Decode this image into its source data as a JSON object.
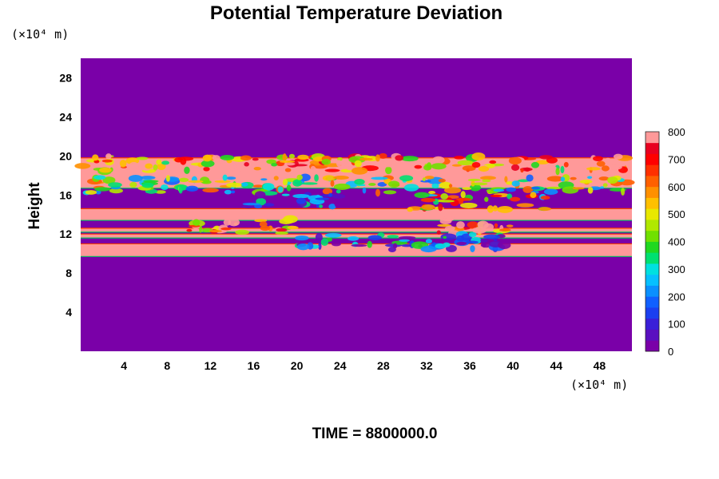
{
  "chart_data": {
    "type": "heatmap",
    "title": "Potential Temperature Deviation",
    "ylabel": "Height",
    "x_unit": "(×10⁴ m)",
    "y_unit": "(×10⁴ m)",
    "footer": "TIME = 8800000.0",
    "xlim": [
      0,
      51
    ],
    "ylim": [
      0,
      30
    ],
    "x_ticks": [
      4,
      8,
      12,
      16,
      20,
      24,
      28,
      32,
      36,
      40,
      44,
      48
    ],
    "y_ticks": [
      4,
      8,
      12,
      16,
      20,
      24,
      28
    ],
    "colorbar": {
      "min": 0,
      "max": 800,
      "ticks": [
        0,
        100,
        200,
        300,
        400,
        500,
        600,
        700,
        800
      ],
      "colors": [
        "#7a00a8",
        "#5a0fc0",
        "#3a1fd8",
        "#1b3ff0",
        "#1060ff",
        "#0a90ff",
        "#06c0ff",
        "#00e0e0",
        "#00e070",
        "#20d820",
        "#70e000",
        "#b0e800",
        "#e8e800",
        "#ffc000",
        "#ff9000",
        "#ff6000",
        "#ff3000",
        "#ff0000",
        "#e80020",
        "#ff9999"
      ]
    },
    "background_value": 0,
    "bands": [
      {
        "y_bottom": 9.7,
        "y_top": 11.0,
        "value": 800
      },
      {
        "y_bottom": 11.6,
        "y_top": 12.0,
        "value": 800
      },
      {
        "y_bottom": 12.2,
        "y_top": 12.6,
        "value": 800
      },
      {
        "y_bottom": 13.4,
        "y_top": 14.6,
        "value": 800
      },
      {
        "y_bottom": 16.7,
        "y_top": 19.8,
        "value": 800
      }
    ],
    "disturbances": [
      {
        "x_from": 0,
        "x_to": 51,
        "y": 19.2,
        "value": 600
      },
      {
        "x_from": 0,
        "x_to": 51,
        "y": 17.0,
        "value": 400
      },
      {
        "x_from": 14,
        "x_to": 24,
        "y": 15.6,
        "value": 150
      },
      {
        "x_from": 30,
        "x_to": 43,
        "y": 15.3,
        "value": 500
      },
      {
        "x_from": 10,
        "x_to": 20,
        "y": 12.8,
        "value": 650
      },
      {
        "x_from": 33,
        "x_to": 40,
        "y": 12.8,
        "value": 700
      },
      {
        "x_from": 20,
        "x_to": 40,
        "y": 11.2,
        "value": 150
      }
    ]
  }
}
